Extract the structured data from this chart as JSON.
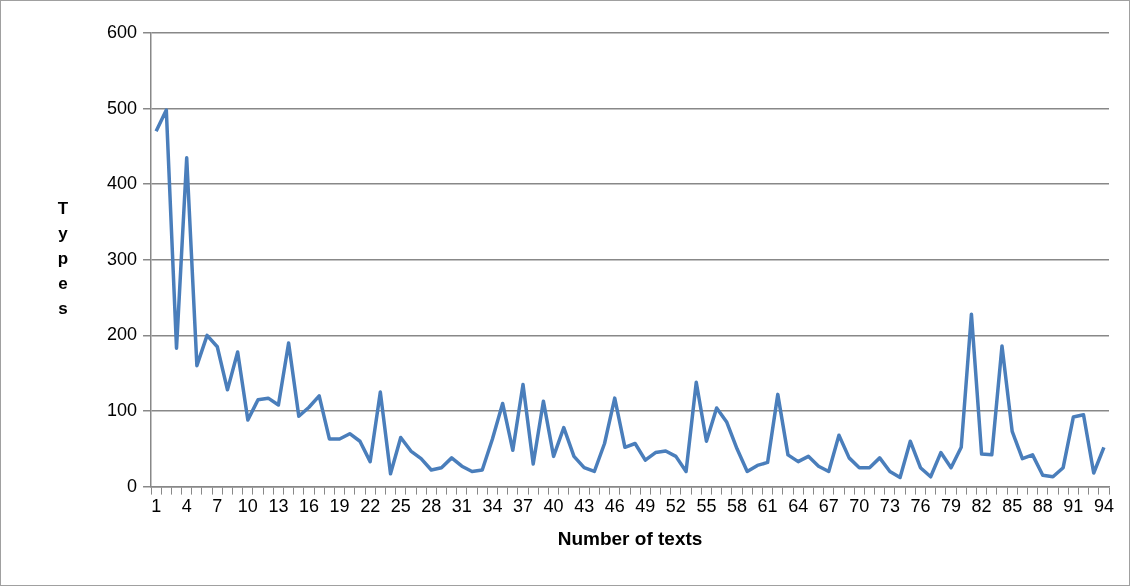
{
  "chart_data": {
    "type": "line",
    "xlabel": "Number of texts",
    "ylabel": "Types",
    "categories": [
      "1",
      null,
      null,
      "4",
      null,
      null,
      "7",
      null,
      null,
      "10",
      null,
      null,
      "13",
      null,
      null,
      "16",
      null,
      null,
      "19",
      null,
      null,
      "22",
      null,
      null,
      "25",
      null,
      null,
      "28",
      null,
      null,
      "31",
      null,
      null,
      "34",
      null,
      null,
      "37",
      null,
      null,
      "40",
      null,
      null,
      "43",
      null,
      null,
      "46",
      null,
      null,
      "49",
      null,
      null,
      "52",
      null,
      null,
      "55",
      null,
      null,
      "58",
      null,
      null,
      "61",
      null,
      null,
      "64",
      null,
      null,
      "67",
      null,
      null,
      "70",
      null,
      null,
      "73",
      null,
      null,
      "76",
      null,
      null,
      "79",
      null,
      null,
      "82",
      null,
      null,
      "85",
      null,
      null,
      "88",
      null,
      null,
      "91",
      null,
      null,
      "94"
    ],
    "series": [
      {
        "color": "#4a7ebb",
        "values": [
          470,
          498,
          183,
          435,
          160,
          200,
          185,
          128,
          178,
          88,
          115,
          117,
          108,
          190,
          93,
          105,
          120,
          63,
          63,
          70,
          60,
          33,
          125,
          17,
          65,
          47,
          37,
          22,
          25,
          38,
          27,
          20,
          22,
          63,
          110,
          48,
          135,
          30,
          113,
          40,
          78,
          40,
          25,
          20,
          57,
          117,
          52,
          57,
          35,
          45,
          47,
          40,
          20,
          138,
          60,
          104,
          85,
          50,
          20,
          28,
          32,
          122,
          42,
          33,
          40,
          27,
          20,
          68,
          38,
          25,
          25,
          38,
          20,
          12,
          60,
          25,
          13,
          45,
          25,
          52,
          228,
          43,
          42,
          186,
          73,
          37,
          42,
          15,
          13,
          25,
          92,
          95,
          18,
          52
        ]
      }
    ],
    "ylim": [
      0,
      600
    ],
    "yticks": [
      0,
      100,
      200,
      300,
      400,
      500,
      600
    ],
    "grid": "y",
    "legend": false,
    "marker": "none",
    "line_style": "solid"
  }
}
